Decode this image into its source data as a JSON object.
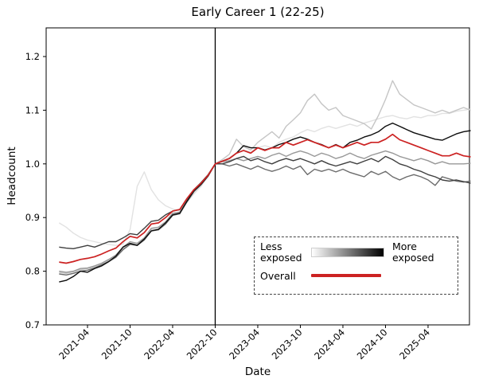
{
  "title": "Early Career 1 (22-25)",
  "axes": {
    "xlabel": "Date",
    "ylabel": "Headcount",
    "ytick_labels": [
      "0.7",
      "0.8",
      "0.9",
      "1.0",
      "1.1",
      "1.2"
    ],
    "ytick_values": [
      0.7,
      0.8,
      0.9,
      1.0,
      1.1,
      1.2
    ],
    "xticks": [
      {
        "index": 4,
        "label": "2021-04"
      },
      {
        "index": 10,
        "label": "2021-10"
      },
      {
        "index": 16,
        "label": "2022-04"
      },
      {
        "index": 22,
        "label": "2022-10"
      },
      {
        "index": 28,
        "label": "2023-04"
      },
      {
        "index": 34,
        "label": "2023-10"
      },
      {
        "index": 40,
        "label": "2024-04"
      },
      {
        "index": 46,
        "label": "2024-10"
      },
      {
        "index": 52,
        "label": "2025-04"
      }
    ]
  },
  "legend": {
    "less": "Less\nexposed",
    "more": "More\nexposed",
    "overall": "Overall",
    "gradient_from": "#ffffff",
    "gradient_to": "#000000",
    "overall_color": "#cc2222"
  },
  "chart_data": {
    "type": "line",
    "title": "Early Career 1 (22-25)",
    "xlabel": "Date",
    "ylabel": "Headcount",
    "ylim": [
      0.7,
      1.253
    ],
    "x_start": "2020-12",
    "x_freq": "monthly",
    "n_points": 59,
    "vline_index": 22,
    "vline_date": "2022-10",
    "normalization": {
      "date": "2022-10",
      "value": 1.0
    },
    "series": [
      {
        "name": "exposure-q1-least-exposed",
        "color": "#e2e2e2",
        "values": [
          0.89,
          0.882,
          0.871,
          0.863,
          0.858,
          0.855,
          0.852,
          0.85,
          0.848,
          0.85,
          0.878,
          0.958,
          0.985,
          0.952,
          0.933,
          0.922,
          0.916,
          0.912,
          0.928,
          0.944,
          0.958,
          0.978,
          1.0,
          1.005,
          1.012,
          1.02,
          1.026,
          1.022,
          1.03,
          1.034,
          1.03,
          1.04,
          1.046,
          1.05,
          1.058,
          1.064,
          1.06,
          1.066,
          1.07,
          1.066,
          1.07,
          1.074,
          1.07,
          1.076,
          1.08,
          1.084,
          1.088,
          1.09,
          1.086,
          1.084,
          1.088,
          1.086,
          1.09,
          1.09,
          1.094,
          1.094,
          1.098,
          1.1,
          1.102
        ]
      },
      {
        "name": "exposure-q2",
        "color": "#c5c5c5",
        "values": [
          0.798,
          0.796,
          0.799,
          0.803,
          0.805,
          0.808,
          0.814,
          0.82,
          0.828,
          0.842,
          0.852,
          0.85,
          0.86,
          0.877,
          0.879,
          0.89,
          0.906,
          0.909,
          0.931,
          0.949,
          0.962,
          0.978,
          1.0,
          1.008,
          1.018,
          1.046,
          1.032,
          1.026,
          1.04,
          1.05,
          1.06,
          1.048,
          1.07,
          1.082,
          1.095,
          1.118,
          1.13,
          1.112,
          1.1,
          1.105,
          1.09,
          1.085,
          1.08,
          1.075,
          1.065,
          1.09,
          1.12,
          1.155,
          1.13,
          1.12,
          1.11,
          1.105,
          1.1,
          1.095,
          1.1,
          1.095,
          1.1,
          1.105,
          1.1
        ]
      },
      {
        "name": "exposure-q3",
        "color": "#989898",
        "values": [
          0.8,
          0.798,
          0.8,
          0.805,
          0.806,
          0.81,
          0.815,
          0.822,
          0.83,
          0.845,
          0.855,
          0.852,
          0.862,
          0.88,
          0.882,
          0.892,
          0.908,
          0.91,
          0.932,
          0.95,
          0.963,
          0.979,
          1.0,
          1.004,
          1.006,
          1.01,
          1.006,
          1.01,
          1.014,
          1.01,
          1.016,
          1.02,
          1.014,
          1.02,
          1.024,
          1.02,
          1.014,
          1.02,
          1.016,
          1.01,
          1.014,
          1.02,
          1.014,
          1.01,
          1.016,
          1.02,
          1.024,
          1.02,
          1.014,
          1.01,
          1.006,
          1.01,
          1.006,
          1.0,
          1.004,
          1.0,
          1.0,
          1.0,
          1.001
        ]
      },
      {
        "name": "exposure-q4",
        "color": "#6b6b6b",
        "values": [
          0.795,
          0.793,
          0.796,
          0.8,
          0.802,
          0.806,
          0.812,
          0.818,
          0.826,
          0.84,
          0.85,
          0.848,
          0.858,
          0.875,
          0.877,
          0.888,
          0.904,
          0.907,
          0.929,
          0.948,
          0.961,
          0.977,
          1.0,
          1.0,
          0.996,
          1.0,
          0.995,
          0.99,
          0.996,
          0.99,
          0.986,
          0.99,
          0.996,
          0.99,
          0.996,
          0.98,
          0.99,
          0.986,
          0.99,
          0.985,
          0.99,
          0.984,
          0.98,
          0.976,
          0.986,
          0.98,
          0.986,
          0.976,
          0.97,
          0.976,
          0.98,
          0.976,
          0.97,
          0.96,
          0.976,
          0.972,
          0.968,
          0.966,
          0.968
        ]
      },
      {
        "name": "exposure-q5",
        "color": "#3f3f3f",
        "values": [
          0.845,
          0.843,
          0.842,
          0.845,
          0.848,
          0.845,
          0.85,
          0.855,
          0.855,
          0.862,
          0.87,
          0.868,
          0.88,
          0.893,
          0.895,
          0.905,
          0.912,
          0.915,
          0.935,
          0.952,
          0.965,
          0.98,
          1.0,
          1.0,
          1.004,
          1.01,
          1.014,
          1.006,
          1.01,
          1.004,
          1.0,
          1.006,
          1.01,
          1.006,
          1.01,
          1.005,
          1.0,
          1.006,
          1.0,
          0.996,
          1.0,
          1.004,
          1.0,
          1.005,
          1.01,
          1.004,
          1.014,
          1.008,
          1.0,
          0.996,
          0.99,
          0.986,
          0.98,
          0.976,
          0.97,
          0.968,
          0.97,
          0.967,
          0.964
        ]
      },
      {
        "name": "exposure-q6-most-exposed",
        "color": "#0d0d0d",
        "values": [
          0.78,
          0.783,
          0.79,
          0.8,
          0.798,
          0.805,
          0.81,
          0.818,
          0.828,
          0.845,
          0.852,
          0.848,
          0.86,
          0.875,
          0.878,
          0.89,
          0.905,
          0.908,
          0.93,
          0.95,
          0.962,
          0.978,
          1.0,
          1.005,
          1.01,
          1.02,
          1.034,
          1.03,
          1.03,
          1.026,
          1.03,
          1.036,
          1.04,
          1.046,
          1.05,
          1.046,
          1.04,
          1.036,
          1.03,
          1.036,
          1.03,
          1.04,
          1.044,
          1.05,
          1.054,
          1.06,
          1.07,
          1.076,
          1.07,
          1.064,
          1.058,
          1.054,
          1.05,
          1.046,
          1.044,
          1.05,
          1.056,
          1.06,
          1.062
        ]
      }
    ],
    "overall": {
      "name": "overall",
      "color": "#cc2222",
      "values": [
        0.817,
        0.815,
        0.818,
        0.822,
        0.824,
        0.827,
        0.832,
        0.838,
        0.843,
        0.855,
        0.865,
        0.862,
        0.872,
        0.888,
        0.89,
        0.9,
        0.912,
        0.915,
        0.935,
        0.952,
        0.964,
        0.979,
        1.0,
        1.005,
        1.01,
        1.02,
        1.025,
        1.02,
        1.03,
        1.025,
        1.03,
        1.03,
        1.04,
        1.035,
        1.04,
        1.045,
        1.04,
        1.035,
        1.03,
        1.035,
        1.03,
        1.035,
        1.04,
        1.035,
        1.04,
        1.04,
        1.046,
        1.055,
        1.045,
        1.04,
        1.035,
        1.03,
        1.025,
        1.02,
        1.015,
        1.015,
        1.02,
        1.015,
        1.013
      ]
    }
  }
}
